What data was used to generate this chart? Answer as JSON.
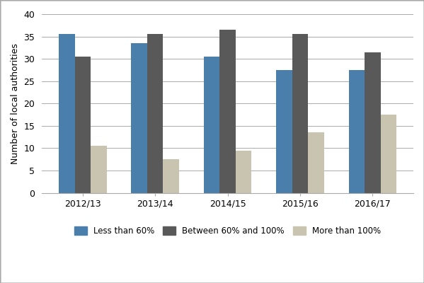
{
  "years": [
    "2012/13",
    "2013/14",
    "2014/15",
    "2015/16",
    "2016/17"
  ],
  "less_than_60": [
    35.5,
    33.5,
    30.5,
    27.5,
    27.5
  ],
  "between_60_100": [
    30.5,
    35.5,
    36.5,
    35.5,
    31.5
  ],
  "more_than_100": [
    10.5,
    7.5,
    9.5,
    13.5,
    17.5
  ],
  "color_less": "#4a7eab",
  "color_between": "#595959",
  "color_more": "#c8c4b0",
  "ylabel": "Number of local authorities",
  "ylim": [
    0,
    40
  ],
  "yticks": [
    0,
    5,
    10,
    15,
    20,
    25,
    30,
    35,
    40
  ],
  "legend_labels": [
    "Less than 60%",
    "Between 60% and 100%",
    "More than 100%"
  ],
  "bar_width": 0.22,
  "grid_color": "#aaaaaa",
  "background_color": "#ffffff",
  "border_color": "#aaaaaa"
}
